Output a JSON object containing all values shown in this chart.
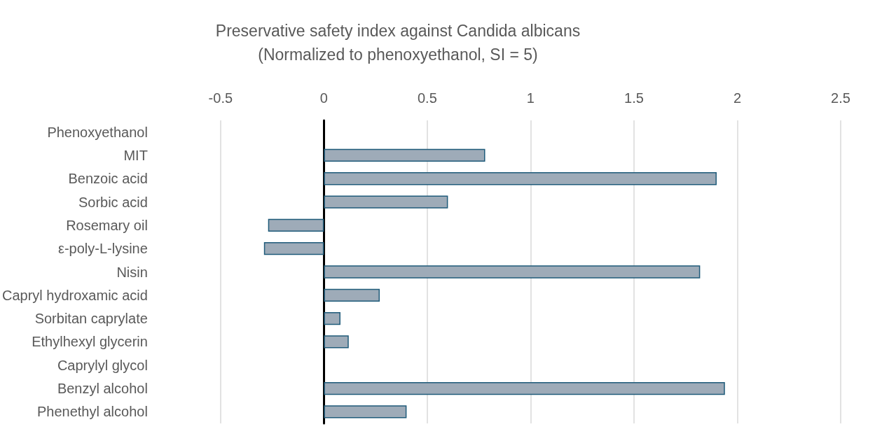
{
  "chart_data": {
    "type": "bar",
    "orientation": "horizontal",
    "title": "Preservative safety index against Candida albicans\n(Normalized to phenoxyethanol, SI = 5)",
    "categories": [
      "Phenoxyethanol",
      "MIT",
      "Benzoic acid",
      "Sorbic acid",
      "Rosemary oil",
      "ε-poly-L-lysine",
      "Nisin",
      "Capryl hydroxamic acid",
      "Sorbitan caprylate",
      "Ethylhexyl glycerin",
      "Caprylyl glycol",
      "Benzyl alcohol",
      "Phenethyl alcohol"
    ],
    "values": [
      0,
      0.78,
      1.9,
      0.6,
      -0.27,
      -0.29,
      1.82,
      0.27,
      0.08,
      0.12,
      0,
      1.94,
      0.4
    ],
    "color": "#9eabb8",
    "xlim": [
      -0.5,
      2.5
    ],
    "xticks": [
      -0.5,
      0,
      0.5,
      1,
      1.5,
      2,
      2.5
    ],
    "grid": "x"
  }
}
